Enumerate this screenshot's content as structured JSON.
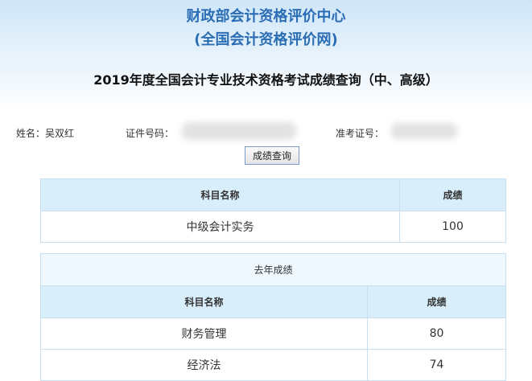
{
  "header": {
    "title_line1": "财政部会计资格评价中心",
    "title_line2": "(全国会计资格评价网)",
    "subtitle": "2019年度全国会计专业技术资格考试成绩查询（中、高级）"
  },
  "info": {
    "name_label": "姓名：吴双红",
    "id_label": "证件号码：",
    "ticket_label": "准考证号："
  },
  "query_button": "成绩查询",
  "current": {
    "columns": [
      "科目名称",
      "成绩"
    ],
    "rows": [
      [
        "中级会计实务",
        "100"
      ]
    ]
  },
  "last_year": {
    "caption": "去年成绩",
    "columns": [
      "科目名称",
      "成绩"
    ],
    "rows": [
      [
        "财务管理",
        "80"
      ],
      [
        "经济法",
        "74"
      ]
    ]
  }
}
